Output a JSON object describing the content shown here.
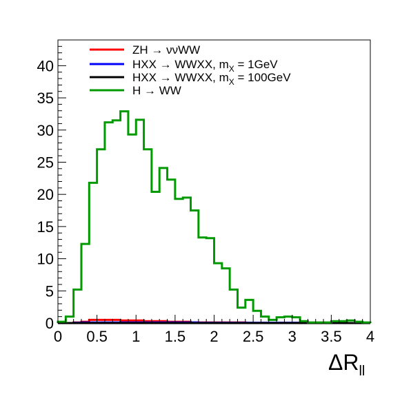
{
  "chart_data": {
    "type": "histogram",
    "xlabel_main": "ΔR",
    "xlabel_sub": "ll",
    "ylabel": "",
    "xlim": [
      0,
      4
    ],
    "ylim": [
      0,
      44
    ],
    "x_ticks": [
      0,
      0.5,
      1,
      1.5,
      2,
      2.5,
      3,
      3.5,
      4
    ],
    "x_tick_labels": [
      "0",
      "0.5",
      "1",
      "1.5",
      "2",
      "2.5",
      "3",
      "3.5",
      "4"
    ],
    "y_ticks": [
      0,
      5,
      10,
      15,
      20,
      25,
      30,
      35,
      40
    ],
    "y_tick_labels": [
      "0",
      "5",
      "10",
      "15",
      "20",
      "25",
      "30",
      "35",
      "40"
    ],
    "bin_edges": [
      0,
      0.1,
      0.2,
      0.3,
      0.4,
      0.5,
      0.6,
      0.7,
      0.8,
      0.9,
      1.0,
      1.1,
      1.2,
      1.3,
      1.4,
      1.5,
      1.6,
      1.7,
      1.8,
      1.9,
      2.0,
      2.1,
      2.2,
      2.3,
      2.4,
      2.5,
      2.6,
      2.7,
      2.8,
      2.9,
      3.0,
      3.1,
      3.2,
      3.3,
      3.4,
      3.5,
      3.6,
      3.7,
      3.8,
      3.9,
      4.0
    ],
    "legend_position": "top-left",
    "series": [
      {
        "name": "ZH → ννWW",
        "color": "#ff0000",
        "values": [
          0,
          0,
          0.1,
          0.2,
          0.5,
          0.5,
          0.5,
          0.5,
          0.4,
          0.4,
          0.4,
          0.3,
          0.3,
          0.3,
          0.2,
          0.2,
          0.2,
          0.1,
          0.1,
          0.1,
          0.1,
          0.1,
          0.1,
          0.1,
          0.05,
          0.05,
          0.05,
          0,
          0,
          0,
          0,
          0,
          0,
          0,
          0,
          0,
          0,
          0,
          0,
          0
        ]
      },
      {
        "name": "HXX → WWXX, m_X = 1GeV",
        "name_parts": [
          "HXX → WWXX, m",
          "X",
          " = 1GeV"
        ],
        "color": "#0000ff",
        "values": [
          0,
          0,
          0.05,
          0.1,
          0.1,
          0.1,
          0.1,
          0.1,
          0.1,
          0.1,
          0.1,
          0.1,
          0.1,
          0.1,
          0.1,
          0.1,
          0.1,
          0.1,
          0.05,
          0.05,
          0.05,
          0.05,
          0.05,
          0.05,
          0.05,
          0.05,
          0.05,
          0.05,
          0.05,
          0.05,
          0.05,
          0.05,
          0,
          0,
          0,
          0,
          0,
          0,
          0,
          0
        ]
      },
      {
        "name": "HXX → WWXX, m_X = 100GeV",
        "name_parts": [
          "HXX → WWXX, m",
          "X",
          " = 100GeV"
        ],
        "color": "#000000",
        "values": [
          0,
          0,
          0,
          0,
          0,
          0,
          0,
          0,
          0,
          0,
          0,
          0,
          0,
          0,
          0,
          0,
          0,
          0,
          0,
          0,
          0,
          0,
          0,
          0,
          0,
          0,
          0,
          0,
          0,
          0,
          0,
          0,
          0,
          0,
          0,
          0,
          0,
          0,
          0,
          0
        ]
      },
      {
        "name": "H → WW",
        "color": "#009900",
        "values": [
          0.2,
          1.0,
          5.2,
          12.3,
          21.8,
          27.0,
          31.2,
          31.5,
          32.9,
          29.3,
          31.6,
          27.0,
          20.4,
          24.1,
          22.3,
          19.3,
          19.5,
          17.5,
          13.3,
          13.2,
          9.3,
          8.5,
          5.2,
          2.4,
          3.6,
          1.9,
          1.0,
          0.5,
          0.9,
          1.0,
          0.9,
          0.3,
          0.1,
          0.1,
          0.1,
          0.3,
          0.3,
          0.4,
          0.2,
          0.1
        ]
      }
    ]
  }
}
